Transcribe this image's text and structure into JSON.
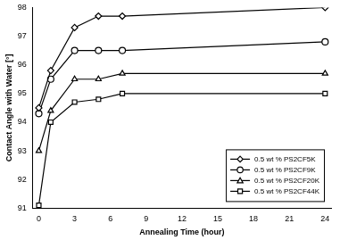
{
  "chart_data": {
    "type": "line",
    "x_label": "Annealing Time (hour)",
    "y_label": "Contact Angle with Water [°]",
    "xlim": [
      -0.5,
      24.5
    ],
    "xticks": [
      0,
      3,
      6,
      9,
      12,
      15,
      18,
      21,
      24
    ],
    "ylim": [
      91,
      98
    ],
    "yticks": [
      91,
      92,
      93,
      94,
      95,
      96,
      97,
      98
    ],
    "grid": false,
    "legend": "lower right",
    "series": [
      {
        "name": "0.5 wt % PS2CF5K",
        "color": "#000000",
        "marker": "diamond",
        "x": [
          0,
          1,
          3,
          5,
          7,
          24
        ],
        "values": [
          94.5,
          95.8,
          97.3,
          97.7,
          97.7,
          98.0
        ]
      },
      {
        "name": "0.5 wt % PS2CF9K",
        "color": "#000000",
        "marker": "circle",
        "x": [
          0,
          1,
          3,
          5,
          7,
          24
        ],
        "values": [
          94.3,
          95.5,
          96.5,
          96.5,
          96.5,
          96.8
        ]
      },
      {
        "name": "0.5 wt % PS2CF20K",
        "color": "#000000",
        "marker": "triangle",
        "x": [
          0,
          1,
          3,
          5,
          7,
          24
        ],
        "values": [
          93.0,
          94.4,
          95.5,
          95.5,
          95.7,
          95.7
        ]
      },
      {
        "name": "0.5 wt % PS2CF44K",
        "color": "#000000",
        "marker": "square",
        "x": [
          0,
          1,
          3,
          5,
          7,
          24
        ],
        "values": [
          91.1,
          94.0,
          94.7,
          94.8,
          95.0,
          95.0
        ]
      }
    ]
  }
}
